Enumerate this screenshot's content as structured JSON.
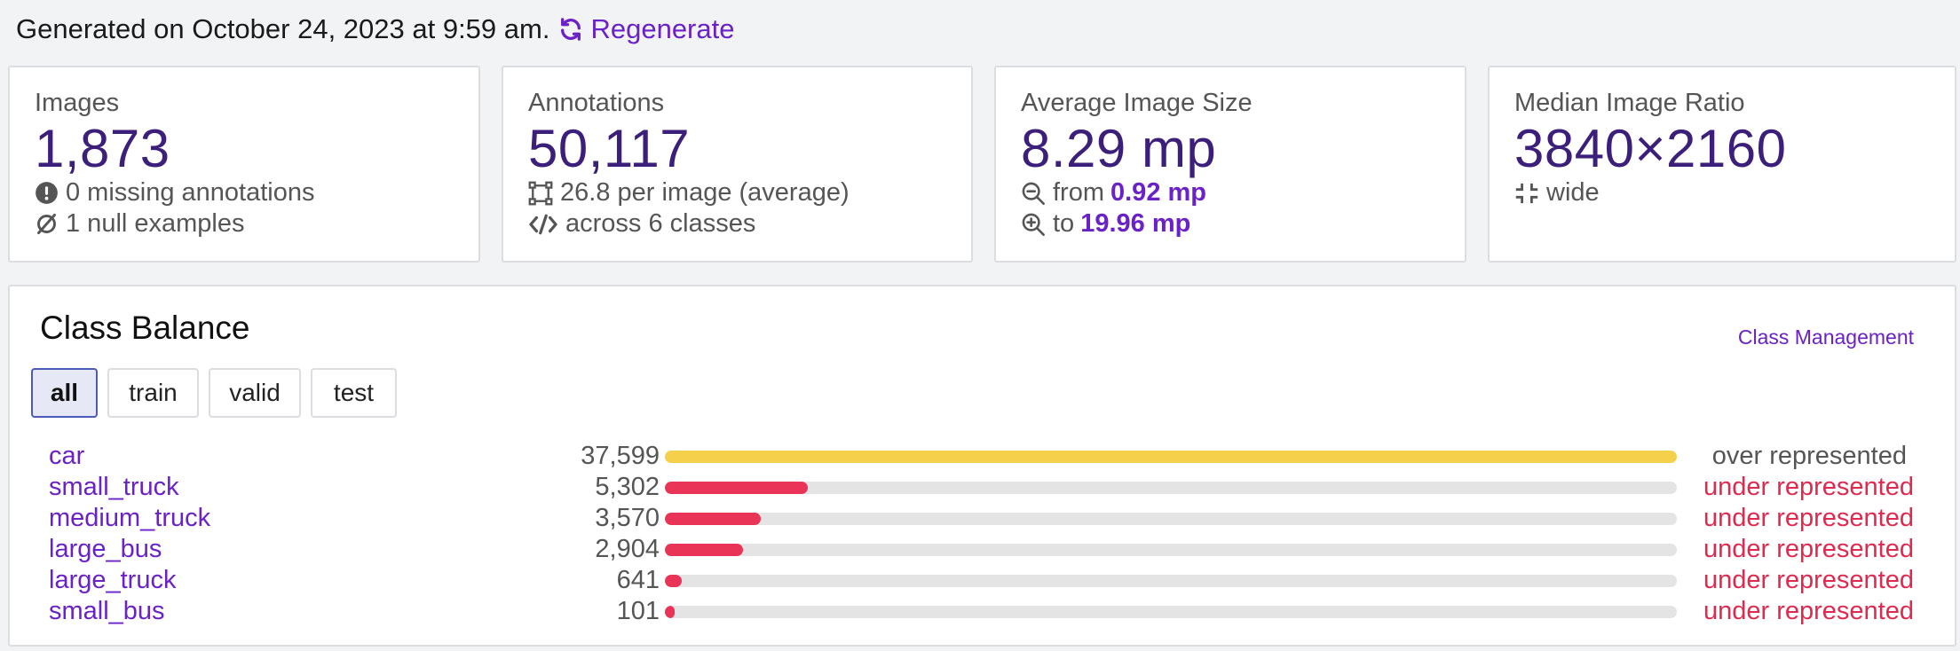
{
  "header": {
    "generated_text": "Generated on October 24, 2023 at 9:59 am.",
    "regenerate_label": "Regenerate"
  },
  "cards": {
    "images": {
      "label": "Images",
      "value": "1,873",
      "missing": "0 missing annotations",
      "null_examples": "1 null examples"
    },
    "annotations": {
      "label": "Annotations",
      "value": "50,117",
      "per_image": "26.8 per image (average)",
      "classes": "across 6 classes"
    },
    "avg_size": {
      "label": "Average Image Size",
      "value": "8.29 mp",
      "from_prefix": "from",
      "from_value": "0.92 mp",
      "to_prefix": "to",
      "to_value": "19.96 mp"
    },
    "median_ratio": {
      "label": "Median Image Ratio",
      "value": "3840×2160",
      "shape": "wide"
    }
  },
  "class_balance": {
    "title": "Class Balance",
    "management_link": "Class Management",
    "tabs": [
      "all",
      "train",
      "valid",
      "test"
    ],
    "active_tab": "all",
    "max_count": 37599,
    "rows": [
      {
        "name": "car",
        "count": "37,599",
        "value": 37599,
        "status": "over represented",
        "status_type": "over"
      },
      {
        "name": "small_truck",
        "count": "5,302",
        "value": 5302,
        "status": "under represented",
        "status_type": "under"
      },
      {
        "name": "medium_truck",
        "count": "3,570",
        "value": 3570,
        "status": "under represented",
        "status_type": "under"
      },
      {
        "name": "large_bus",
        "count": "2,904",
        "value": 2904,
        "status": "under represented",
        "status_type": "under"
      },
      {
        "name": "large_truck",
        "count": "641",
        "value": 641,
        "status": "under represented",
        "status_type": "under"
      },
      {
        "name": "small_bus",
        "count": "101",
        "value": 101,
        "status": "under represented",
        "status_type": "under"
      }
    ]
  },
  "colors": {
    "accent": "#6b21c8",
    "big_number": "#3b1f7a",
    "over_bar": "#f5d04a",
    "under_bar": "#ea3457",
    "over_text": "#555555",
    "under_text": "#e0294f"
  },
  "icons": {
    "regenerate": "refresh-icon",
    "missing": "exclamation-circle-icon",
    "null": "null-set-icon",
    "per_image": "bounding-box-icon",
    "classes": "code-icon",
    "from": "zoom-out-icon",
    "to": "zoom-in-icon",
    "shape": "compress-icon"
  }
}
